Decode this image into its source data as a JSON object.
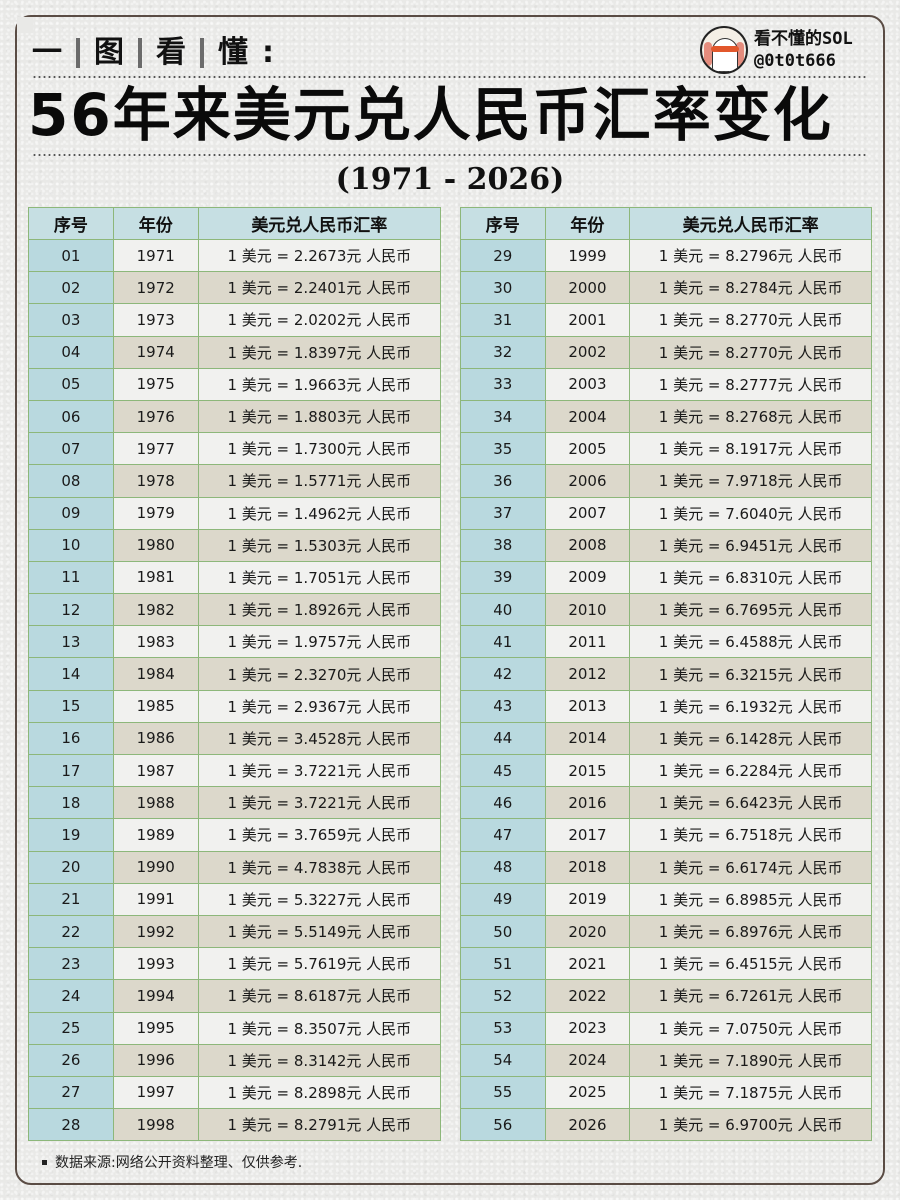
{
  "header": {
    "kicker": [
      "一",
      "图",
      "看",
      "懂",
      ":"
    ],
    "title": "56年来美元兑人民币汇率变化",
    "subtitle": "(1971 - 2026)",
    "author": {
      "name": "看不懂的SOL",
      "handle": "@0t0t666",
      "avatar_icon": "ghost-avatar-icon"
    }
  },
  "table": {
    "columns": [
      "序号",
      "年份",
      "美元兑人民币汇率"
    ],
    "rows_left": [
      {
        "idx": "01",
        "year": "1971",
        "rate": "1 美元 = 2.2673元 人民币"
      },
      {
        "idx": "02",
        "year": "1972",
        "rate": "1 美元 = 2.2401元 人民币"
      },
      {
        "idx": "03",
        "year": "1973",
        "rate": "1 美元 = 2.0202元 人民币"
      },
      {
        "idx": "04",
        "year": "1974",
        "rate": "1 美元 = 1.8397元 人民币"
      },
      {
        "idx": "05",
        "year": "1975",
        "rate": "1 美元 = 1.9663元 人民币"
      },
      {
        "idx": "06",
        "year": "1976",
        "rate": "1 美元 = 1.8803元 人民币"
      },
      {
        "idx": "07",
        "year": "1977",
        "rate": "1 美元 = 1.7300元 人民币"
      },
      {
        "idx": "08",
        "year": "1978",
        "rate": "1 美元 = 1.5771元 人民币"
      },
      {
        "idx": "09",
        "year": "1979",
        "rate": "1 美元 = 1.4962元 人民币"
      },
      {
        "idx": "10",
        "year": "1980",
        "rate": "1 美元 = 1.5303元 人民币"
      },
      {
        "idx": "11",
        "year": "1981",
        "rate": "1 美元 = 1.7051元 人民币"
      },
      {
        "idx": "12",
        "year": "1982",
        "rate": "1 美元 = 1.8926元 人民币"
      },
      {
        "idx": "13",
        "year": "1983",
        "rate": "1 美元 = 1.9757元 人民币"
      },
      {
        "idx": "14",
        "year": "1984",
        "rate": "1 美元 = 2.3270元 人民币"
      },
      {
        "idx": "15",
        "year": "1985",
        "rate": "1 美元 = 2.9367元 人民币"
      },
      {
        "idx": "16",
        "year": "1986",
        "rate": "1 美元 = 3.4528元 人民币"
      },
      {
        "idx": "17",
        "year": "1987",
        "rate": "1 美元 = 3.7221元 人民币"
      },
      {
        "idx": "18",
        "year": "1988",
        "rate": "1 美元 = 3.7221元 人民币"
      },
      {
        "idx": "19",
        "year": "1989",
        "rate": "1 美元 = 3.7659元 人民币"
      },
      {
        "idx": "20",
        "year": "1990",
        "rate": "1 美元 = 4.7838元 人民币"
      },
      {
        "idx": "21",
        "year": "1991",
        "rate": "1 美元 = 5.3227元 人民币"
      },
      {
        "idx": "22",
        "year": "1992",
        "rate": "1 美元 = 5.5149元 人民币"
      },
      {
        "idx": "23",
        "year": "1993",
        "rate": "1 美元 = 5.7619元 人民币"
      },
      {
        "idx": "24",
        "year": "1994",
        "rate": "1 美元 = 8.6187元 人民币"
      },
      {
        "idx": "25",
        "year": "1995",
        "rate": "1 美元 = 8.3507元 人民币"
      },
      {
        "idx": "26",
        "year": "1996",
        "rate": "1 美元 = 8.3142元 人民币"
      },
      {
        "idx": "27",
        "year": "1997",
        "rate": "1 美元 = 8.2898元 人民币"
      },
      {
        "idx": "28",
        "year": "1998",
        "rate": "1 美元 = 8.2791元 人民币"
      }
    ],
    "rows_right": [
      {
        "idx": "29",
        "year": "1999",
        "rate": "1 美元 = 8.2796元 人民币"
      },
      {
        "idx": "30",
        "year": "2000",
        "rate": "1 美元 = 8.2784元 人民币"
      },
      {
        "idx": "31",
        "year": "2001",
        "rate": "1 美元 = 8.2770元 人民币"
      },
      {
        "idx": "32",
        "year": "2002",
        "rate": "1 美元 = 8.2770元 人民币"
      },
      {
        "idx": "33",
        "year": "2003",
        "rate": "1 美元 = 8.2777元 人民币"
      },
      {
        "idx": "34",
        "year": "2004",
        "rate": "1 美元 = 8.2768元 人民币"
      },
      {
        "idx": "35",
        "year": "2005",
        "rate": "1 美元 = 8.1917元 人民币"
      },
      {
        "idx": "36",
        "year": "2006",
        "rate": "1 美元 = 7.9718元 人民币"
      },
      {
        "idx": "37",
        "year": "2007",
        "rate": "1 美元 = 7.6040元 人民币"
      },
      {
        "idx": "38",
        "year": "2008",
        "rate": "1 美元 = 6.9451元 人民币"
      },
      {
        "idx": "39",
        "year": "2009",
        "rate": "1 美元 = 6.8310元 人民币"
      },
      {
        "idx": "40",
        "year": "2010",
        "rate": "1 美元 = 6.7695元 人民币"
      },
      {
        "idx": "41",
        "year": "2011",
        "rate": "1 美元 = 6.4588元 人民币"
      },
      {
        "idx": "42",
        "year": "2012",
        "rate": "1 美元 = 6.3215元 人民币"
      },
      {
        "idx": "43",
        "year": "2013",
        "rate": "1 美元 = 6.1932元 人民币"
      },
      {
        "idx": "44",
        "year": "2014",
        "rate": "1 美元 = 6.1428元 人民币"
      },
      {
        "idx": "45",
        "year": "2015",
        "rate": "1 美元 = 6.2284元 人民币"
      },
      {
        "idx": "46",
        "year": "2016",
        "rate": "1 美元 = 6.6423元 人民币"
      },
      {
        "idx": "47",
        "year": "2017",
        "rate": "1 美元 = 6.7518元 人民币"
      },
      {
        "idx": "48",
        "year": "2018",
        "rate": "1 美元 = 6.6174元 人民币"
      },
      {
        "idx": "49",
        "year": "2019",
        "rate": "1 美元 = 6.8985元 人民币"
      },
      {
        "idx": "50",
        "year": "2020",
        "rate": "1 美元 = 6.8976元 人民币"
      },
      {
        "idx": "51",
        "year": "2021",
        "rate": "1 美元 = 6.4515元 人民币"
      },
      {
        "idx": "52",
        "year": "2022",
        "rate": "1 美元 = 6.7261元 人民币"
      },
      {
        "idx": "53",
        "year": "2023",
        "rate": "1 美元 = 7.0750元 人民币"
      },
      {
        "idx": "54",
        "year": "2024",
        "rate": "1 美元 = 7.1890元 人民币"
      },
      {
        "idx": "55",
        "year": "2025",
        "rate": "1 美元 = 7.1875元 人民币"
      },
      {
        "idx": "56",
        "year": "2026",
        "rate": "1 美元 = 6.9700元 人民币"
      }
    ]
  },
  "footnote": "数据来源:网络公开资料整理、仅供参考.",
  "colors": {
    "header_bg": "#c6dfe3",
    "index_col_bg": "#b9d9df",
    "row_light": "#f1f1ef",
    "row_dark": "#dcd8cb",
    "border": "#8db77a",
    "frame": "#5a4c44"
  }
}
